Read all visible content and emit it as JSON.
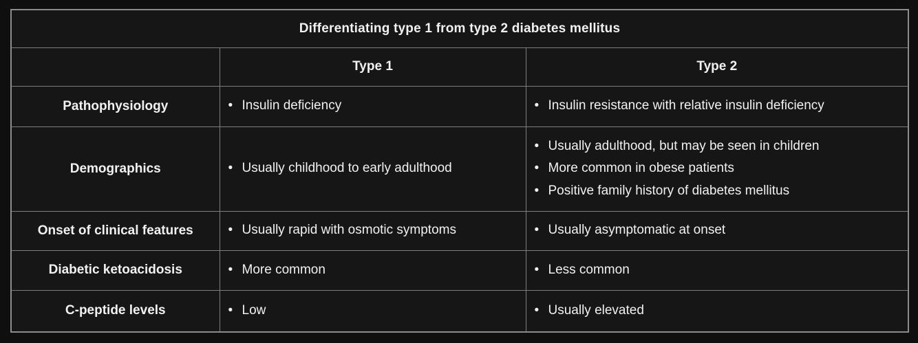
{
  "table": {
    "title": "Differentiating type 1 from type 2 diabetes mellitus",
    "col_headers": {
      "type1": "Type 1",
      "type2": "Type 2"
    },
    "rows": [
      {
        "label": "Pathophysiology",
        "type1": [
          "Insulin deficiency"
        ],
        "type2": [
          "Insulin resistance with relative insulin deficiency"
        ]
      },
      {
        "label": "Demographics",
        "type1": [
          "Usually childhood to early adulthood"
        ],
        "type2": [
          "Usually adulthood, but may be seen in children",
          "More common in obese patients",
          "Positive family history of diabetes mellitus"
        ]
      },
      {
        "label": "Onset of clinical features",
        "type1": [
          "Usually rapid with osmotic symptoms"
        ],
        "type2": [
          "Usually asymptomatic at onset"
        ]
      },
      {
        "label": "Diabetic ketoacidosis",
        "type1": [
          "More common"
        ],
        "type2": [
          "Less common"
        ]
      },
      {
        "label": "C-peptide levels",
        "type1": [
          "Low"
        ],
        "type2": [
          "Usually elevated"
        ]
      }
    ],
    "colors": {
      "page_background": "#0f0f0f",
      "cell_background": "#161616",
      "border": "#8c8c8c",
      "text": "#f1f1f1"
    }
  }
}
